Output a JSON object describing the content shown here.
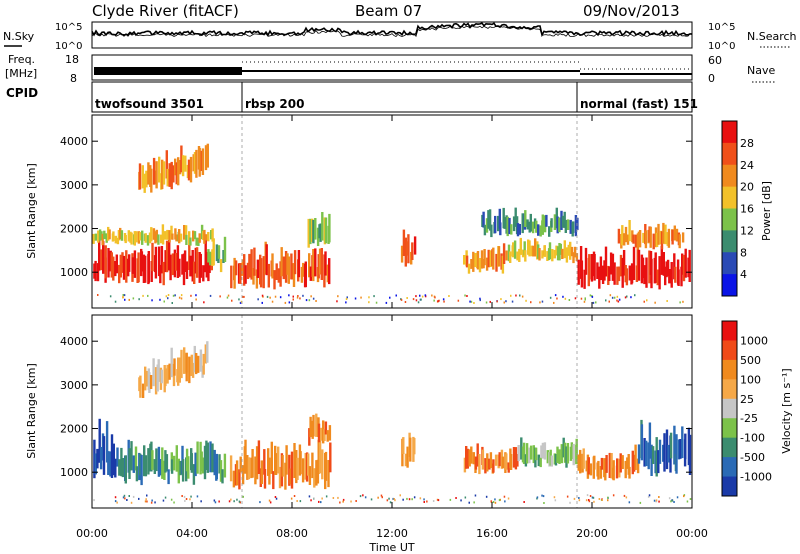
{
  "header": {
    "title": "Clyde River (fitACF)",
    "beam": "Beam 07",
    "date": "09/Nov/2013"
  },
  "sky_panel": {
    "left_label": "N.Sky",
    "left_ticks": [
      "10^5",
      "10^0"
    ],
    "right_ticks": [
      "10^5",
      "10^0"
    ],
    "right_label": "N.Search"
  },
  "freq_panel": {
    "left_label_1": "Freq.",
    "left_label_2": "[MHz]",
    "left_ticks": [
      "18",
      "8"
    ],
    "right_ticks": [
      "60",
      "0"
    ],
    "right_label": "Nave"
  },
  "cpid_panel": {
    "label": "CPID",
    "segments": [
      {
        "name": "twofsound 3501",
        "start_hour": 0.0
      },
      {
        "name": "rbsp 200",
        "start_hour": 6.0
      },
      {
        "name": "normal (fast) 151",
        "start_hour": 19.4
      }
    ]
  },
  "colors": {
    "power": [
      "#0a14e6",
      "#2a4ab5",
      "#3b8c6f",
      "#7cc24a",
      "#f2c12a",
      "#f08a1e",
      "#f0501a",
      "#e81010"
    ],
    "velocity": [
      "#e81010",
      "#f04a18",
      "#f08a1e",
      "#f5a848",
      "#c6c6c6",
      "#7cc24a",
      "#3b8c6f",
      "#2a6ab5",
      "#1a3aa8"
    ]
  },
  "chart_data": [
    {
      "type": "heatmap",
      "name": "power",
      "xlabel": "",
      "ylabel": "Slant Range [km]",
      "x_unit": "hour UT",
      "xlim": [
        0,
        24
      ],
      "ylim": [
        180,
        4600
      ],
      "yticks": [
        "1000",
        "2000",
        "3000",
        "4000"
      ],
      "colorbar": {
        "label": "Power [dB]",
        "ticks": [
          "4",
          "8",
          "12",
          "16",
          "20",
          "24",
          "28"
        ],
        "range": [
          0,
          32
        ]
      },
      "regions": [
        {
          "x0": 0.0,
          "x1": 4.8,
          "y0": 700,
          "y1": 1600,
          "level": 7
        },
        {
          "x0": 0.0,
          "x1": 4.8,
          "y0": 1600,
          "y1": 2000,
          "level": 4
        },
        {
          "x0": 1.8,
          "x1": 4.6,
          "y0": 2600,
          "y1": 3400,
          "level": 5
        },
        {
          "x0": 4.6,
          "x1": 5.3,
          "y0": 1000,
          "y1": 1800,
          "level": 3
        },
        {
          "x0": 5.5,
          "x1": 9.5,
          "y0": 600,
          "y1": 1500,
          "level": 6
        },
        {
          "x0": 8.6,
          "x1": 9.5,
          "y0": 1500,
          "y1": 2300,
          "level": 3
        },
        {
          "x0": 12.3,
          "x1": 12.9,
          "y0": 1100,
          "y1": 1900,
          "level": 6
        },
        {
          "x0": 14.8,
          "x1": 16.5,
          "y0": 950,
          "y1": 1550,
          "level": 5
        },
        {
          "x0": 16.5,
          "x1": 19.4,
          "y0": 1200,
          "y1": 1700,
          "level": 4
        },
        {
          "x0": 15.5,
          "x1": 19.4,
          "y0": 1800,
          "y1": 2400,
          "level": 2
        },
        {
          "x0": 19.4,
          "x1": 23.9,
          "y0": 600,
          "y1": 1500,
          "level": 7
        },
        {
          "x0": 21.0,
          "x1": 23.6,
          "y0": 1500,
          "y1": 2100,
          "level": 5
        }
      ]
    },
    {
      "type": "heatmap",
      "name": "velocity",
      "xlabel": "Time UT",
      "ylabel": "Slant Range [km]",
      "x_unit": "hour UT",
      "xlim": [
        0,
        24
      ],
      "xticks": [
        "00:00",
        "04:00",
        "08:00",
        "12:00",
        "16:00",
        "20:00",
        "00:00"
      ],
      "ylim": [
        180,
        4600
      ],
      "yticks": [
        "1000",
        "2000",
        "3000",
        "4000"
      ],
      "colorbar": {
        "label": "Velocity [m s⁻¹]",
        "ticks": [
          "1000",
          "500",
          "100",
          "25",
          "-25",
          "-100",
          "-500",
          "-1000"
        ]
      },
      "regions": [
        {
          "x0": 0.0,
          "x1": 1.0,
          "y0": 800,
          "y1": 2000,
          "level": 7
        },
        {
          "x0": 1.0,
          "x1": 5.3,
          "y0": 700,
          "y1": 1600,
          "level": 6
        },
        {
          "x0": 1.8,
          "x1": 4.6,
          "y0": 2600,
          "y1": 3400,
          "level": 3
        },
        {
          "x0": 5.5,
          "x1": 9.5,
          "y0": 600,
          "y1": 1600,
          "level": 2
        },
        {
          "x0": 8.6,
          "x1": 9.5,
          "y0": 1600,
          "y1": 2300,
          "level": 2
        },
        {
          "x0": 12.3,
          "x1": 12.9,
          "y0": 1100,
          "y1": 1900,
          "level": 2
        },
        {
          "x0": 14.8,
          "x1": 17.0,
          "y0": 950,
          "y1": 1600,
          "level": 2
        },
        {
          "x0": 17.0,
          "x1": 19.4,
          "y0": 1100,
          "y1": 1700,
          "level": 5
        },
        {
          "x0": 19.4,
          "x1": 21.8,
          "y0": 800,
          "y1": 1500,
          "level": 2
        },
        {
          "x0": 21.8,
          "x1": 23.9,
          "y0": 900,
          "y1": 2000,
          "level": 7
        }
      ]
    }
  ]
}
